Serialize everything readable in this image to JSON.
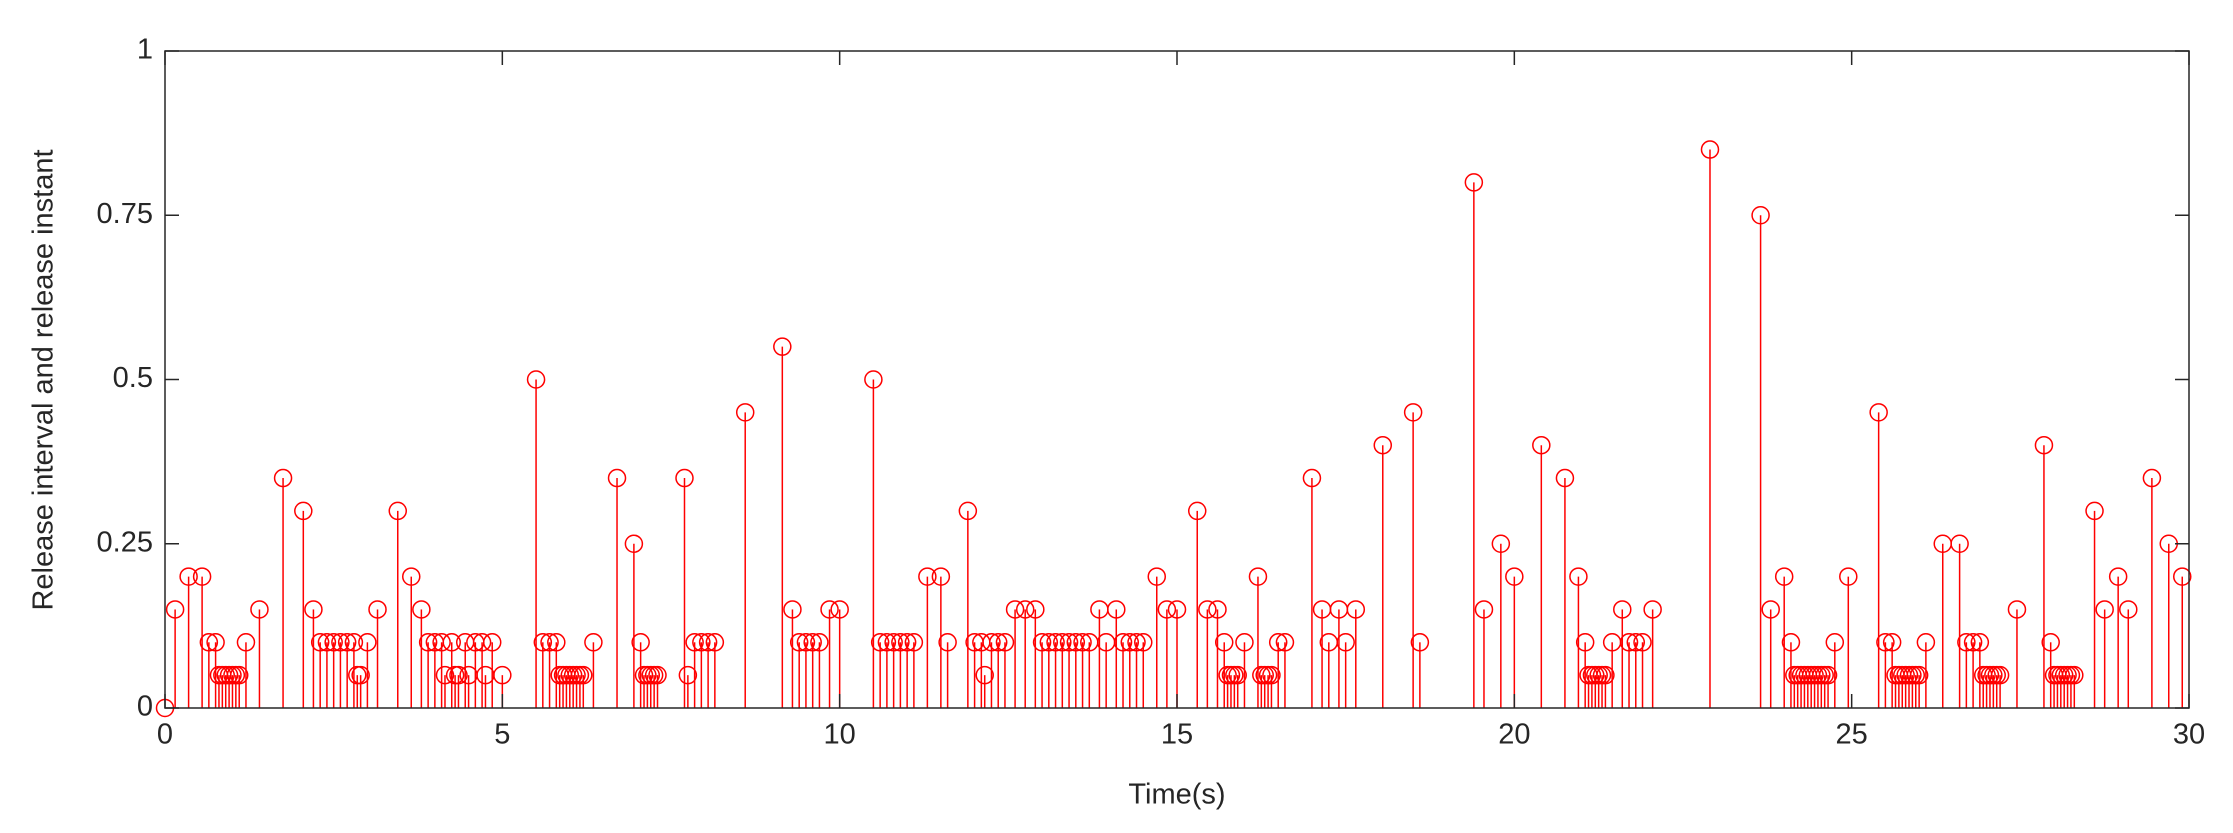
{
  "chart_data": {
    "type": "stem",
    "xlabel": "Time(s)",
    "ylabel": "Release interval and release instant",
    "color": "#ff0000",
    "xlim": [
      0,
      30
    ],
    "ylim": [
      0,
      1
    ],
    "xticks": [
      0,
      5,
      10,
      15,
      20,
      25,
      30
    ],
    "yticks": [
      0,
      0.25,
      0.5,
      0.75,
      1
    ],
    "x": [
      0,
      0.15,
      0.35,
      0.55,
      0.65,
      0.75,
      0.8,
      0.85,
      0.9,
      0.95,
      1.0,
      1.05,
      1.1,
      1.2,
      1.4,
      1.75,
      2.05,
      2.2,
      2.3,
      2.4,
      2.5,
      2.6,
      2.7,
      2.8,
      2.85,
      2.9,
      3.0,
      3.15,
      3.45,
      3.65,
      3.8,
      3.9,
      4.0,
      4.1,
      4.15,
      4.25,
      4.3,
      4.35,
      4.45,
      4.5,
      4.6,
      4.7,
      4.75,
      4.85,
      5.0,
      5.5,
      5.6,
      5.7,
      5.8,
      5.85,
      5.9,
      5.95,
      6.0,
      6.05,
      6.1,
      6.15,
      6.2,
      6.35,
      6.7,
      6.95,
      7.05,
      7.1,
      7.15,
      7.2,
      7.25,
      7.3,
      7.7,
      7.75,
      7.85,
      7.95,
      8.05,
      8.15,
      8.6,
      9.15,
      9.3,
      9.4,
      9.5,
      9.6,
      9.7,
      9.85,
      10.0,
      10.5,
      10.6,
      10.7,
      10.8,
      10.9,
      11.0,
      11.1,
      11.3,
      11.5,
      11.6,
      11.9,
      12.0,
      12.1,
      12.15,
      12.25,
      12.35,
      12.45,
      12.6,
      12.75,
      12.9,
      13.0,
      13.1,
      13.2,
      13.3,
      13.4,
      13.5,
      13.6,
      13.7,
      13.85,
      13.95,
      14.1,
      14.2,
      14.3,
      14.4,
      14.5,
      14.7,
      14.85,
      15.0,
      15.3,
      15.45,
      15.6,
      15.7,
      15.75,
      15.8,
      15.85,
      15.9,
      16.0,
      16.2,
      16.25,
      16.3,
      16.35,
      16.4,
      16.5,
      16.6,
      17.0,
      17.15,
      17.25,
      17.4,
      17.5,
      17.65,
      18.05,
      18.5,
      18.6,
      19.4,
      19.55,
      19.8,
      20.0,
      20.4,
      20.75,
      20.95,
      21.05,
      21.1,
      21.15,
      21.2,
      21.25,
      21.3,
      21.35,
      21.45,
      21.6,
      21.7,
      21.8,
      21.9,
      22.05,
      22.9,
      23.65,
      23.8,
      24.0,
      24.1,
      24.15,
      24.2,
      24.25,
      24.3,
      24.35,
      24.4,
      24.45,
      24.5,
      24.55,
      24.6,
      24.65,
      24.75,
      24.95,
      25.4,
      25.5,
      25.6,
      25.65,
      25.7,
      25.75,
      25.8,
      25.85,
      25.9,
      25.95,
      26.0,
      26.1,
      26.35,
      26.6,
      26.7,
      26.8,
      26.9,
      26.95,
      27.0,
      27.05,
      27.1,
      27.15,
      27.2,
      27.45,
      27.85,
      27.95,
      28.0,
      28.05,
      28.1,
      28.15,
      28.2,
      28.25,
      28.3,
      28.6,
      28.75,
      28.95,
      29.1,
      29.45,
      29.7,
      29.9
    ],
    "values": [
      0,
      0.15,
      0.2,
      0.2,
      0.1,
      0.1,
      0.05,
      0.05,
      0.05,
      0.05,
      0.05,
      0.05,
      0.05,
      0.1,
      0.15,
      0.35,
      0.3,
      0.15,
      0.1,
      0.1,
      0.1,
      0.1,
      0.1,
      0.1,
      0.05,
      0.05,
      0.1,
      0.15,
      0.3,
      0.2,
      0.15,
      0.1,
      0.1,
      0.1,
      0.05,
      0.1,
      0.05,
      0.05,
      0.1,
      0.05,
      0.1,
      0.1,
      0.05,
      0.1,
      0.05,
      0.5,
      0.1,
      0.1,
      0.1,
      0.05,
      0.05,
      0.05,
      0.05,
      0.05,
      0.05,
      0.05,
      0.05,
      0.1,
      0.35,
      0.25,
      0.1,
      0.05,
      0.05,
      0.05,
      0.05,
      0.05,
      0.35,
      0.05,
      0.1,
      0.1,
      0.1,
      0.1,
      0.45,
      0.55,
      0.15,
      0.1,
      0.1,
      0.1,
      0.1,
      0.15,
      0.15,
      0.5,
      0.1,
      0.1,
      0.1,
      0.1,
      0.1,
      0.1,
      0.2,
      0.2,
      0.1,
      0.3,
      0.1,
      0.1,
      0.05,
      0.1,
      0.1,
      0.1,
      0.15,
      0.15,
      0.15,
      0.1,
      0.1,
      0.1,
      0.1,
      0.1,
      0.1,
      0.1,
      0.1,
      0.15,
      0.1,
      0.15,
      0.1,
      0.1,
      0.1,
      0.1,
      0.2,
      0.15,
      0.15,
      0.3,
      0.15,
      0.15,
      0.1,
      0.05,
      0.05,
      0.05,
      0.05,
      0.1,
      0.2,
      0.05,
      0.05,
      0.05,
      0.05,
      0.1,
      0.1,
      0.35,
      0.15,
      0.1,
      0.15,
      0.1,
      0.15,
      0.4,
      0.45,
      0.1,
      0.8,
      0.15,
      0.25,
      0.2,
      0.4,
      0.35,
      0.2,
      0.1,
      0.05,
      0.05,
      0.05,
      0.05,
      0.05,
      0.05,
      0.1,
      0.15,
      0.1,
      0.1,
      0.1,
      0.15,
      0.85,
      0.75,
      0.15,
      0.2,
      0.1,
      0.05,
      0.05,
      0.05,
      0.05,
      0.05,
      0.05,
      0.05,
      0.05,
      0.05,
      0.05,
      0.05,
      0.1,
      0.2,
      0.45,
      0.1,
      0.1,
      0.05,
      0.05,
      0.05,
      0.05,
      0.05,
      0.05,
      0.05,
      0.05,
      0.1,
      0.25,
      0.25,
      0.1,
      0.1,
      0.1,
      0.05,
      0.05,
      0.05,
      0.05,
      0.05,
      0.05,
      0.15,
      0.4,
      0.1,
      0.05,
      0.05,
      0.05,
      0.05,
      0.05,
      0.05,
      0.05,
      0.3,
      0.15,
      0.2,
      0.15,
      0.35,
      0.25,
      0.2
    ]
  }
}
